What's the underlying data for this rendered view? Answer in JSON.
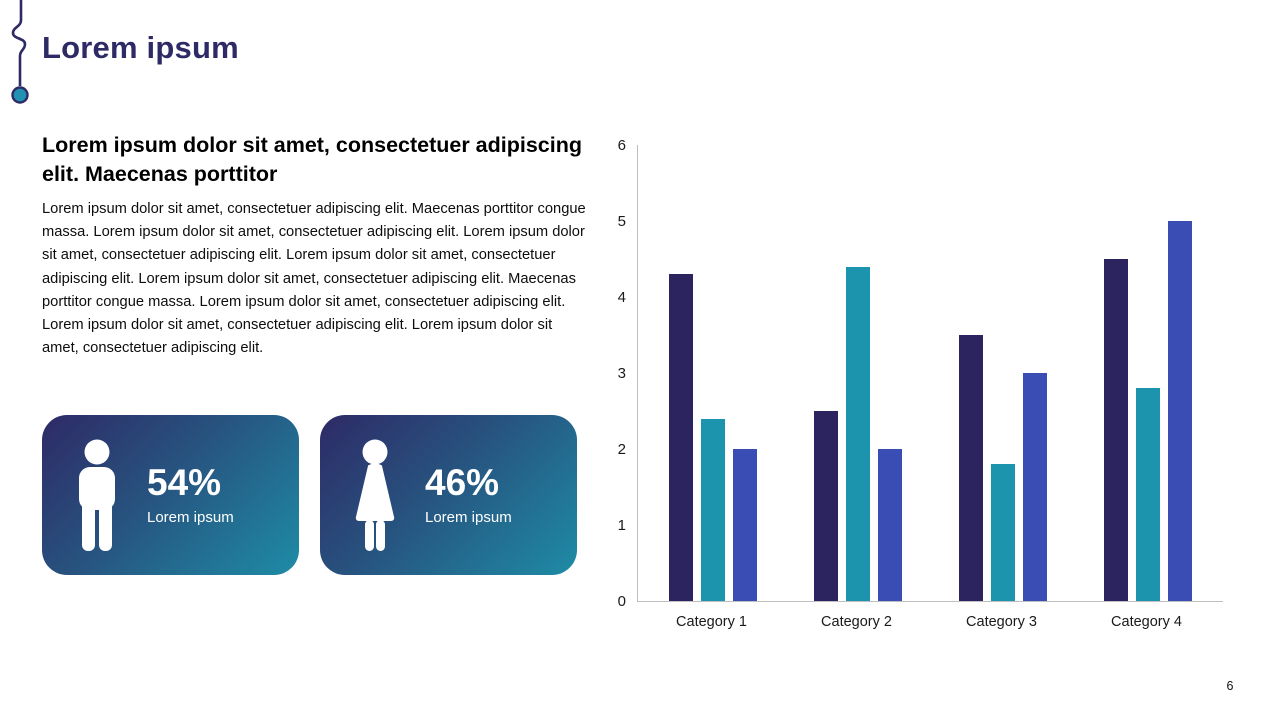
{
  "slide": {
    "title": "Lorem ipsum",
    "page_number": "6"
  },
  "left_panel": {
    "heading": "Lorem ipsum dolor sit amet, consectetuer adipiscing elit. Maecenas porttitor",
    "body": "Lorem ipsum dolor sit amet, consectetuer adipiscing elit. Maecenas porttitor congue massa. Lorem ipsum dolor sit amet, consectetuer adipiscing elit. Lorem ipsum dolor sit amet, consectetuer adipiscing elit. Lorem ipsum dolor sit amet, consectetuer adipiscing elit. Lorem ipsum dolor sit amet, consectetuer adipiscing elit. Maecenas porttitor congue massa. Lorem ipsum dolor sit amet, consectetuer adipiscing elit. Lorem ipsum dolor sit amet, consectetuer adipiscing elit. Lorem ipsum dolor sit amet, consectetuer adipiscing elit."
  },
  "stat_cards": [
    {
      "icon": "male-person-icon",
      "value": "54%",
      "label": "Lorem ipsum"
    },
    {
      "icon": "female-person-icon",
      "value": "46%",
      "label": "Lorem ipsum"
    }
  ],
  "chart_data": {
    "type": "bar",
    "categories": [
      "Category 1",
      "Category 2",
      "Category 3",
      "Category 4"
    ],
    "series": [
      {
        "color": "#2B245E",
        "values": [
          4.3,
          2.5,
          3.5,
          4.5
        ]
      },
      {
        "color": "#1D94AD",
        "values": [
          2.4,
          4.4,
          1.8,
          2.8
        ]
      },
      {
        "color": "#3A4DB4",
        "values": [
          2.0,
          2.0,
          3.0,
          5.0
        ]
      }
    ],
    "ylim": [
      0,
      6
    ],
    "yticks": [
      0,
      1,
      2,
      3,
      4,
      5,
      6
    ],
    "grid": false,
    "legend": "none",
    "title": "",
    "xlabel": "",
    "ylabel": ""
  },
  "colors": {
    "title_navy": "#2E2A66",
    "bar_navy": "#2B245E",
    "bar_teal": "#1D94AD",
    "bar_blue": "#3A4DB4",
    "card_gradient_start": "#2E2A66",
    "card_gradient_end": "#1E8CA6",
    "axis_gray": "#BFBFBF",
    "deco_dot_teal": "#2391B2"
  }
}
